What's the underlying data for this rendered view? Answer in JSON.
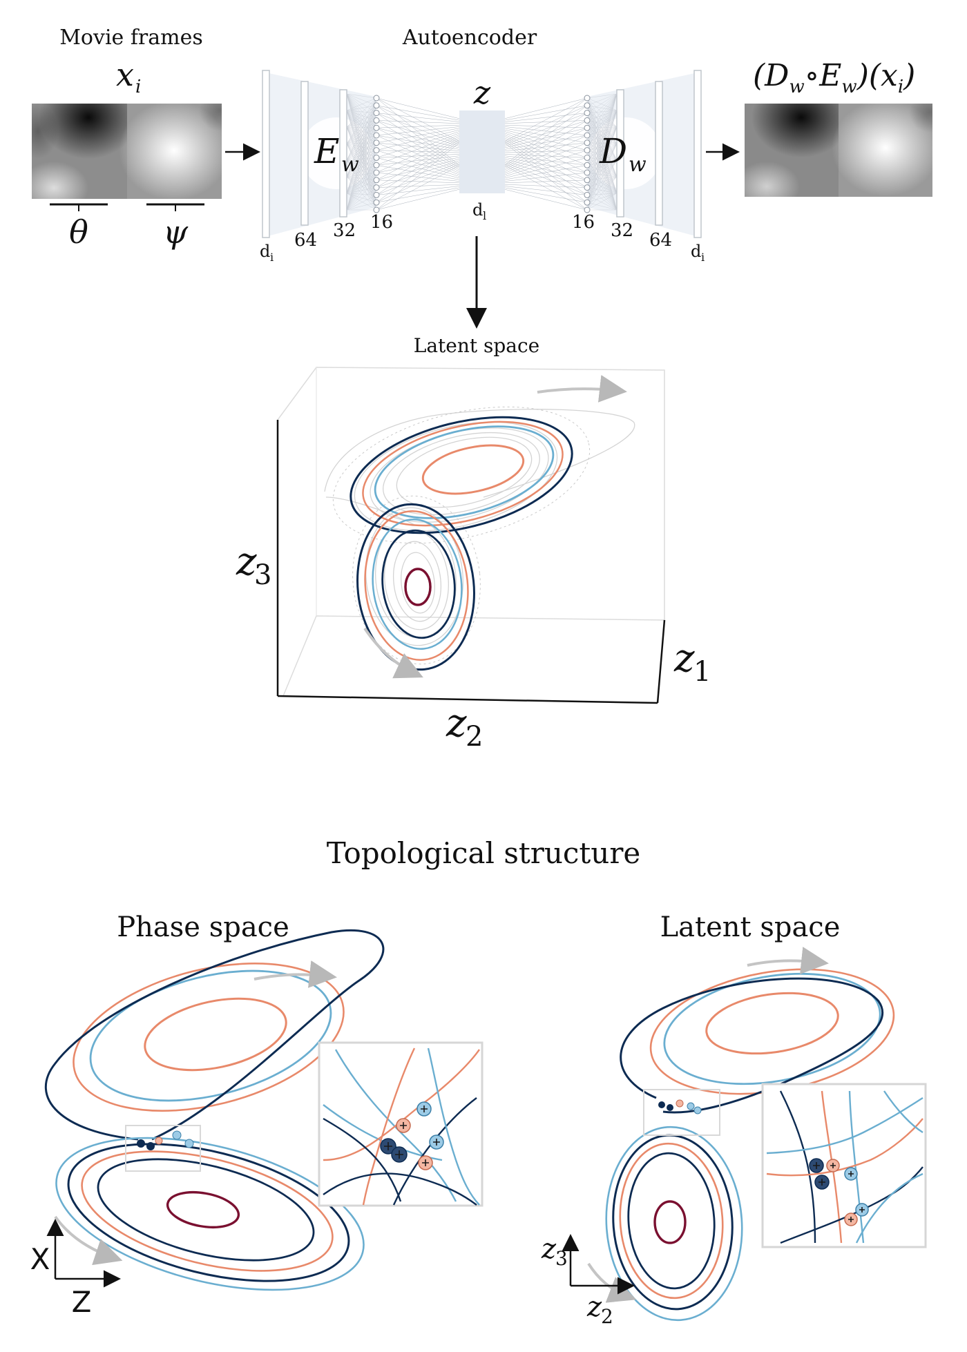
{
  "top": {
    "movie_frames_title": "Movie frames",
    "autoencoder_title": "Autoencoder",
    "input_label": "x",
    "input_sub": "i",
    "theta_label": "θ",
    "psi_label": "ψ",
    "encoder_label": "E",
    "encoder_sub": "w",
    "decoder_label": "D",
    "decoder_sub": "w",
    "latent_label": "z",
    "latent_dim_label": "d",
    "latent_dim_sub": "l",
    "input_dim_label": "d",
    "input_dim_sub": "i",
    "layer_sizes_encoder": [
      "64",
      "32",
      "16"
    ],
    "layer_sizes_decoder": [
      "16",
      "32",
      "64"
    ],
    "output_label": "(D",
    "output_sub1": "w",
    "output_mid": "∘E",
    "output_sub2": "w",
    "output_end": ")(x",
    "output_sub3": "i",
    "output_close": ")"
  },
  "latent_plot": {
    "title": "Latent space",
    "axis_z3": "z",
    "axis_z3_sub": "3",
    "axis_z2": "z",
    "axis_z2_sub": "2",
    "axis_z1": "z",
    "axis_z1_sub": "1"
  },
  "bottom": {
    "title": "Topological structure",
    "phase_title": "Phase space",
    "latent_title": "Latent space",
    "phase_axis_x": "X",
    "phase_axis_z": "Z",
    "latent_axis_z3": "z",
    "latent_axis_z3_sub": "3",
    "latent_axis_z2": "z",
    "latent_axis_z2_sub": "2"
  },
  "colors": {
    "dark_blue": "#0d2b52",
    "light_blue": "#6aaed0",
    "orange": "#e8896a",
    "maroon": "#7a1030",
    "gray": "#bcbcbc"
  }
}
